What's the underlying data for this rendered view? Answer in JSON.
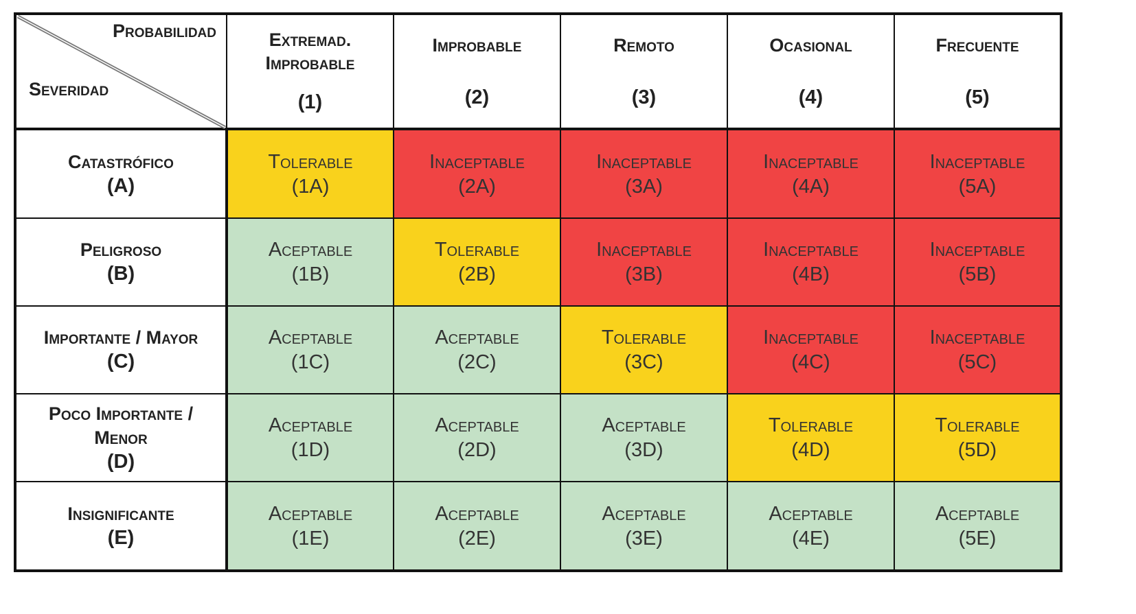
{
  "header": {
    "probability_label": "Probabilidad",
    "severity_label": "Severidad",
    "columns": [
      {
        "label": "Extremad. Improbable",
        "num": "(1)"
      },
      {
        "label": "Improbable",
        "num": "(2)"
      },
      {
        "label": "Remoto",
        "num": "(3)"
      },
      {
        "label": "Ocasional",
        "num": "(4)"
      },
      {
        "label": "Frecuente",
        "num": "(5)"
      }
    ]
  },
  "colors": {
    "Aceptable": "#c4e1c6",
    "Tolerable": "#f9d21c",
    "Inaceptable": "#f04444"
  },
  "rows": [
    {
      "label": "Catastrófico",
      "code": "(A)",
      "cells": [
        {
          "status": "Tolerable",
          "code": "(1A)"
        },
        {
          "status": "Inaceptable",
          "code": "(2A)"
        },
        {
          "status": "Inaceptable",
          "code": "(3A)"
        },
        {
          "status": "Inaceptable",
          "code": "(4A)"
        },
        {
          "status": "Inaceptable",
          "code": "(5A)"
        }
      ]
    },
    {
      "label": "Peligroso",
      "code": "(B)",
      "cells": [
        {
          "status": "Aceptable",
          "code": "(1B)"
        },
        {
          "status": "Tolerable",
          "code": "(2B)"
        },
        {
          "status": "Inaceptable",
          "code": "(3B)"
        },
        {
          "status": "Inaceptable",
          "code": "(4B)"
        },
        {
          "status": "Inaceptable",
          "code": "(5B)"
        }
      ]
    },
    {
      "label": "Importante / Mayor",
      "code": "(C)",
      "cells": [
        {
          "status": "Aceptable",
          "code": "(1C)"
        },
        {
          "status": "Aceptable",
          "code": "(2C)"
        },
        {
          "status": "Tolerable",
          "code": "(3C)"
        },
        {
          "status": "Inaceptable",
          "code": "(4C)"
        },
        {
          "status": "Inaceptable",
          "code": "(5C)"
        }
      ]
    },
    {
      "label": "Poco Importante / Menor",
      "code": "(D)",
      "cells": [
        {
          "status": "Aceptable",
          "code": "(1D)"
        },
        {
          "status": "Aceptable",
          "code": "(2D)"
        },
        {
          "status": "Aceptable",
          "code": "(3D)"
        },
        {
          "status": "Tolerable",
          "code": "(4D)"
        },
        {
          "status": "Tolerable",
          "code": "(5D)"
        }
      ]
    },
    {
      "label": "Insignificante",
      "code": "(E)",
      "cells": [
        {
          "status": "Aceptable",
          "code": "(1E)"
        },
        {
          "status": "Aceptable",
          "code": "(2E)"
        },
        {
          "status": "Aceptable",
          "code": "(3E)"
        },
        {
          "status": "Aceptable",
          "code": "(4E)"
        },
        {
          "status": "Aceptable",
          "code": "(5E)"
        }
      ]
    }
  ]
}
